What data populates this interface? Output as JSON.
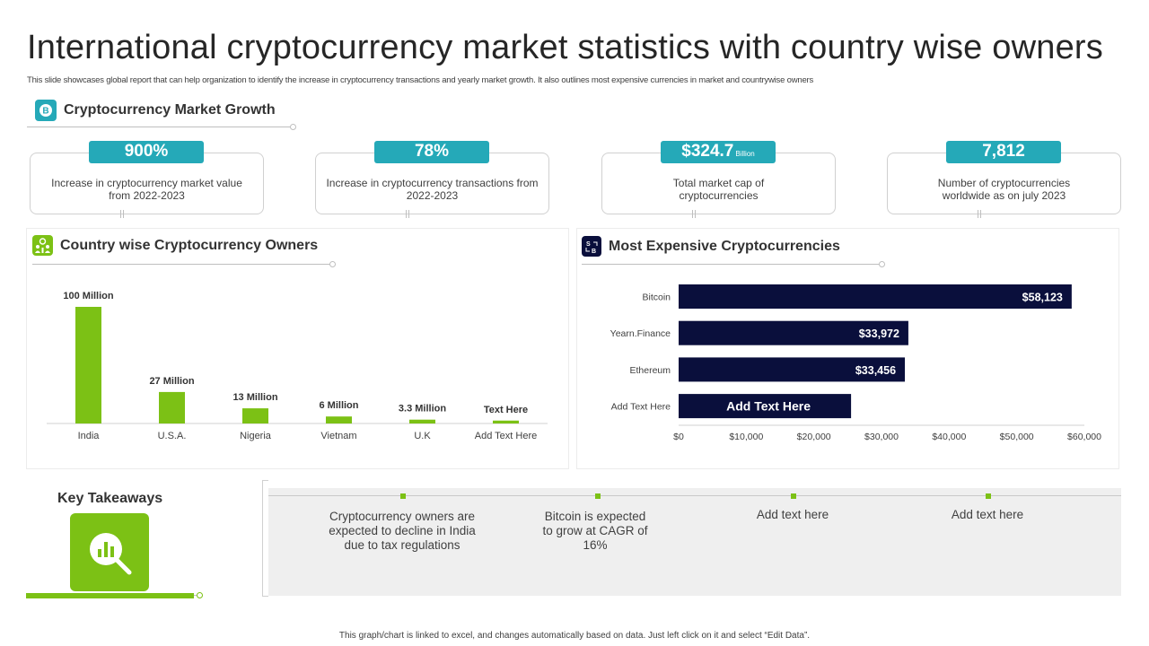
{
  "title": "International cryptocurrency market statistics with country wise owners",
  "subtitle": "This slide showcases global report that can help organization to identify the increase in cryptocurrency transactions and yearly market growth. It also outlines most expensive currencies in market and countrywise owners",
  "market_growth": {
    "heading": "Cryptocurrency Market Growth",
    "cards": [
      {
        "value": "900%",
        "unit": "",
        "text": "Increase in cryptocurrency market value from 2022-2023"
      },
      {
        "value": "78%",
        "unit": "",
        "text": "Increase in cryptocurrency transactions from 2022-2023"
      },
      {
        "value": "$324.7",
        "unit": "Billion",
        "text": "Total market cap of cryptocurrencies"
      },
      {
        "value": "7,812",
        "unit": "",
        "text": "Number of cryptocurrencies worldwide as on july 2023"
      }
    ]
  },
  "owners_panel": {
    "heading": "Country wise Cryptocurrency Owners"
  },
  "expensive_panel": {
    "heading": "Most Expensive Cryptocurrencies"
  },
  "colors": {
    "accent_teal": "#25a9b8",
    "bar_green": "#7cc115",
    "bar_navy": "#0a0f3c",
    "panel_gray": "#efefef"
  },
  "chart_data": [
    {
      "type": "bar",
      "title": "Country wise Cryptocurrency Owners",
      "categories": [
        "India",
        "U.S.A.",
        "Nigeria",
        "Vietnam",
        "U.K",
        "Add Text Here"
      ],
      "values": [
        100,
        27,
        13,
        6,
        3.3,
        2.5
      ],
      "data_labels": [
        "100 Million",
        "27 Million",
        "13 Million",
        "6 Million",
        "3.3 Million",
        "Text Here"
      ],
      "ylim": [
        0,
        100
      ],
      "grid": false
    },
    {
      "type": "bar",
      "orientation": "horizontal",
      "title": "Most Expensive Cryptocurrencies",
      "categories": [
        "Bitcoin",
        "Yearn.Finance",
        "Ethereum",
        "Add Text Here"
      ],
      "values": [
        58123,
        33972,
        33456,
        25500
      ],
      "data_labels": [
        "$58,123",
        "$33,972",
        "$33,456",
        "Add Text Here"
      ],
      "xlim": [
        0,
        60000
      ],
      "x_ticks": [
        "$0",
        "$10,000",
        "$20,000",
        "$30,000",
        "$40,000",
        "$50,000",
        "$60,000"
      ],
      "grid": false
    }
  ],
  "takeaways": {
    "heading": "Key Takeaways",
    "items": [
      "Cryptocurrency owners are expected to decline in India due to tax regulations",
      "Bitcoin is expected to grow at CAGR of 16%",
      "Add text here",
      "Add text here"
    ]
  },
  "footnote": "This graph/chart is linked to excel, and changes automatically based on data. Just left click on it and select “Edit Data”."
}
